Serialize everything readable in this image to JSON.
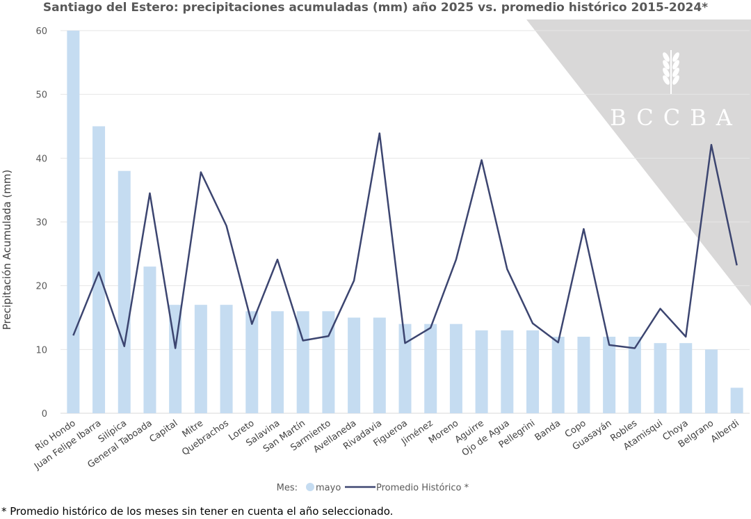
{
  "chart_data": {
    "type": "bar+line",
    "title": "Santiago del Estero: precipitaciones acumuladas (mm) año 2025 vs. promedio histórico 2015-2024*",
    "ylabel": "Precipitación Acumulada (mm)",
    "xlabel": "",
    "ylim": [
      0,
      60
    ],
    "yticks": [
      0,
      10,
      20,
      30,
      40,
      50,
      60
    ],
    "grid": true,
    "legend_placement": "bottom",
    "legend_title": "Mes:",
    "categories": [
      "Río Hondo",
      "Juan Felipe Ibarra",
      "Silípica",
      "General Taboada",
      "Capital",
      "Mitre",
      "Quebrachos",
      "Loreto",
      "Salavina",
      "San Martín",
      "Sarmiento",
      "Avellaneda",
      "Rivadavia",
      "Figueroa",
      "Jiménez",
      "Moreno",
      "Aguirre",
      "Ojo de Agua",
      "Pellegrini",
      "Banda",
      "Copo",
      "Guasayán",
      "Robles",
      "Atamisqui",
      "Choya",
      "Belgrano",
      "Alberdi"
    ],
    "series": [
      {
        "name": "mayo",
        "type": "bar",
        "color": "#c5dcf1",
        "values": [
          60,
          45,
          38,
          23,
          17,
          17,
          17,
          16,
          16,
          16,
          16,
          15,
          15,
          14,
          14,
          14,
          13,
          13,
          13,
          12,
          12,
          12,
          12,
          11,
          11,
          10,
          4
        ]
      },
      {
        "name": "Promedio Histórico *",
        "type": "line",
        "color": "#3c4570",
        "values": [
          12.2,
          22.1,
          10.5,
          34.5,
          10.2,
          37.8,
          29.4,
          14.0,
          24.1,
          11.4,
          12.1,
          20.8,
          43.9,
          11.0,
          13.4,
          24.1,
          39.7,
          22.6,
          14.1,
          11.1,
          28.9,
          10.7,
          10.2,
          16.4,
          12.0,
          42.1,
          23.2
        ]
      }
    ],
    "footnote": "* Promedio histórico de los meses sin tener en cuenta el año seleccionado."
  },
  "watermark": {
    "text": "BCCBA",
    "icon": "wheat-icon",
    "color": "#d9d8d8"
  }
}
